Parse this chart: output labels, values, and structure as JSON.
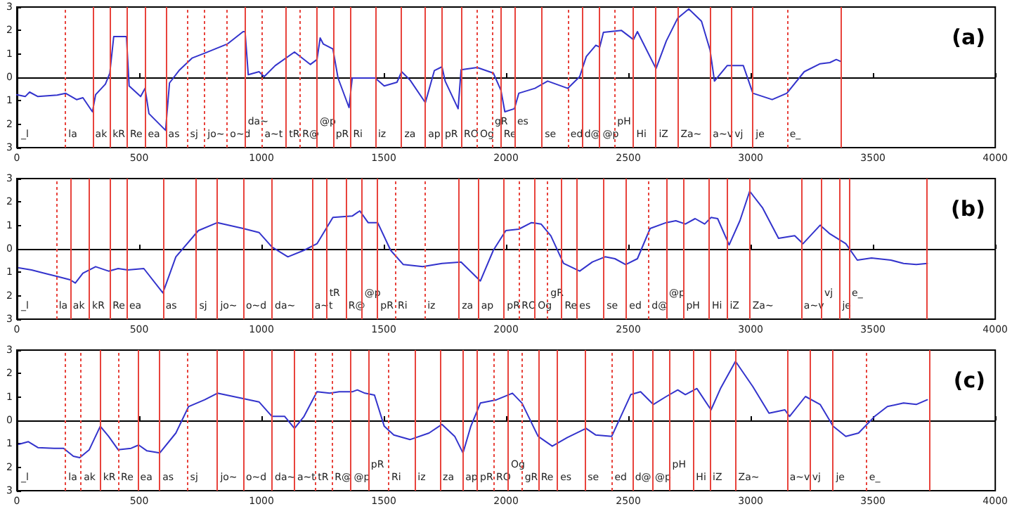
{
  "chart_data": [
    {
      "type": "line",
      "title": "(a)",
      "xlim": [
        0,
        4000
      ],
      "xticks": [
        0,
        500,
        1000,
        1500,
        2000,
        2500,
        3000,
        3500,
        4000
      ],
      "ylim": [
        -3,
        3
      ],
      "yticks": [
        {
          "value": -3,
          "label": "3"
        },
        {
          "value": -2,
          "label": "2"
        },
        {
          "value": -1,
          "label": "1"
        },
        {
          "value": 0,
          "label": "0"
        },
        {
          "value": 1,
          "label": "1"
        },
        {
          "value": 2,
          "label": "2"
        },
        {
          "value": 3,
          "label": "3"
        }
      ],
      "grid": false,
      "marker": "none",
      "line_style": "solid",
      "series": [
        {
          "color": "#3333cc",
          "x": [
            0,
            34,
            52,
            86,
            165,
            199,
            244,
            270,
            309,
            322,
            362,
            380,
            396,
            448,
            459,
            506,
            524,
            540,
            608,
            624,
            663,
            716,
            768,
            860,
            925,
            933,
            946,
            990,
            1011,
            1056,
            1135,
            1200,
            1227,
            1240,
            1253,
            1292,
            1313,
            1358,
            1371,
            1423,
            1465,
            1502,
            1554,
            1573,
            1607,
            1670,
            1707,
            1738,
            1751,
            1804,
            1816,
            1882,
            1948,
            1979,
            1995,
            2034,
            2052,
            2118,
            2170,
            2252,
            2301,
            2328,
            2367,
            2383,
            2398,
            2472,
            2521,
            2537,
            2613,
            2655,
            2702,
            2747,
            2799,
            2834,
            2852,
            2904,
            2970,
            3009,
            3088,
            3148,
            3219,
            3284,
            3324,
            3350,
            3368
          ],
          "values": [
            -0.74,
            -0.82,
            -0.63,
            -0.82,
            -0.76,
            -0.68,
            -0.95,
            -0.87,
            -1.47,
            -0.74,
            -0.29,
            0.18,
            1.74,
            1.74,
            -0.37,
            -0.82,
            -0.47,
            -1.55,
            -2.26,
            -0.24,
            0.29,
            0.82,
            1.03,
            1.42,
            1.95,
            1.95,
            0.11,
            0.24,
            0.03,
            0.5,
            1.08,
            0.55,
            0.76,
            1.68,
            1.42,
            1.21,
            -0.03,
            -1.29,
            -0.03,
            -0.03,
            -0.03,
            -0.37,
            -0.21,
            0.24,
            -0.11,
            -1.08,
            0.29,
            0.45,
            -0.16,
            -1.34,
            0.32,
            0.42,
            0.18,
            -0.55,
            -1.47,
            -1.34,
            -0.68,
            -0.47,
            -0.16,
            -0.47,
            0.03,
            0.89,
            1.37,
            1.29,
            1.92,
            2.0,
            1.61,
            1.95,
            0.37,
            1.55,
            2.53,
            2.92,
            2.39,
            1.16,
            -0.16,
            0.5,
            0.5,
            -0.68,
            -0.95,
            -0.68,
            0.24,
            0.58,
            0.63,
            0.76,
            0.68
          ]
        }
      ],
      "annotations": [
        "_l"
      ],
      "ref_lines": [
        {
          "axis": "x",
          "value": 199,
          "line_style": "dotted",
          "color": "#e8433c",
          "label": "la"
        },
        {
          "axis": "x",
          "value": 309,
          "line_style": "solid",
          "color": "#e8433c",
          "label": "ak"
        },
        {
          "axis": "x",
          "value": 380,
          "line_style": "solid",
          "color": "#e8433c",
          "label": "kR"
        },
        {
          "axis": "x",
          "value": 451,
          "line_style": "solid",
          "color": "#e8433c",
          "label": "Re"
        },
        {
          "axis": "x",
          "value": 524,
          "line_style": "solid",
          "color": "#e8433c",
          "label": "ea"
        },
        {
          "axis": "x",
          "value": 608,
          "line_style": "solid",
          "color": "#e8433c",
          "label": "as"
        },
        {
          "axis": "x",
          "value": 697,
          "line_style": "dotted",
          "color": "#e8433c",
          "label": "sj"
        },
        {
          "axis": "x",
          "value": 768,
          "line_style": "dotted",
          "color": "#e8433c",
          "label": "jo~"
        },
        {
          "axis": "x",
          "value": 860,
          "line_style": "dotted",
          "color": "#e8433c",
          "label": "o~d"
        },
        {
          "axis": "x",
          "value": 933,
          "line_style": "solid",
          "color": "#e8433c",
          "label": "da~"
        },
        {
          "axis": "x",
          "value": 1001,
          "line_style": "dotted",
          "color": "#e8433c",
          "label": "a~t"
        },
        {
          "axis": "x",
          "value": 1101,
          "line_style": "solid",
          "color": "#e8433c",
          "label": "tR"
        },
        {
          "axis": "x",
          "value": 1156,
          "line_style": "dotted",
          "color": "#e8433c",
          "label": "R@"
        },
        {
          "axis": "x",
          "value": 1227,
          "line_style": "solid",
          "color": "#e8433c",
          "label": "@p"
        },
        {
          "axis": "x",
          "value": 1292,
          "line_style": "solid",
          "color": "#e8433c",
          "label": "pR"
        },
        {
          "axis": "x",
          "value": 1363,
          "line_style": "solid",
          "color": "#e8433c",
          "label": "Ri"
        },
        {
          "axis": "x",
          "value": 1465,
          "line_style": "solid",
          "color": "#e8433c",
          "label": "iz"
        },
        {
          "axis": "x",
          "value": 1573,
          "line_style": "solid",
          "color": "#e8433c",
          "label": "za"
        },
        {
          "axis": "x",
          "value": 1670,
          "line_style": "solid",
          "color": "#e8433c",
          "label": "ap"
        },
        {
          "axis": "x",
          "value": 1738,
          "line_style": "solid",
          "color": "#e8433c",
          "label": "pR"
        },
        {
          "axis": "x",
          "value": 1816,
          "line_style": "solid",
          "color": "#e8433c",
          "label": "RO"
        },
        {
          "axis": "x",
          "value": 1882,
          "line_style": "dotted",
          "color": "#e8433c",
          "label": "Og"
        },
        {
          "axis": "x",
          "value": 1942,
          "line_style": "dotted",
          "color": "#e8433c",
          "label": "gR"
        },
        {
          "axis": "x",
          "value": 1979,
          "line_style": "solid",
          "color": "#e8433c",
          "label": "Re"
        },
        {
          "axis": "x",
          "value": 2034,
          "line_style": "solid",
          "color": "#e8433c",
          "label": "es"
        },
        {
          "axis": "x",
          "value": 2147,
          "line_style": "solid",
          "color": "#e8433c",
          "label": "se"
        },
        {
          "axis": "x",
          "value": 2252,
          "line_style": "dotted",
          "color": "#e8433c",
          "label": "ed"
        },
        {
          "axis": "x",
          "value": 2309,
          "line_style": "solid",
          "color": "#e8433c",
          "label": "d@"
        },
        {
          "axis": "x",
          "value": 2383,
          "line_style": "solid",
          "color": "#e8433c",
          "label": "@p"
        },
        {
          "axis": "x",
          "value": 2443,
          "line_style": "dotted",
          "color": "#e8433c",
          "label": "pH"
        },
        {
          "axis": "x",
          "value": 2521,
          "line_style": "solid",
          "color": "#e8433c",
          "label": "Hi"
        },
        {
          "axis": "x",
          "value": 2613,
          "line_style": "solid",
          "color": "#e8433c",
          "label": "iZ"
        },
        {
          "axis": "x",
          "value": 2702,
          "line_style": "solid",
          "color": "#e8433c",
          "label": "Za~"
        },
        {
          "axis": "x",
          "value": 2834,
          "line_style": "solid",
          "color": "#e8433c",
          "label": "a~v"
        },
        {
          "axis": "x",
          "value": 2923,
          "line_style": "solid",
          "color": "#e8433c",
          "label": "vj"
        },
        {
          "axis": "x",
          "value": 3009,
          "line_style": "solid",
          "color": "#e8433c",
          "label": "je"
        },
        {
          "axis": "x",
          "value": 3148,
          "line_style": "dotted",
          "color": "#e8433c",
          "label": "e_"
        },
        {
          "axis": "x",
          "value": 3368,
          "line_style": "solid",
          "color": "#e8433c"
        }
      ]
    },
    {
      "type": "line",
      "title": "(b)",
      "xlim": [
        0,
        4000
      ],
      "xticks": [
        0,
        500,
        1000,
        1500,
        2000,
        2500,
        3000,
        3500,
        4000
      ],
      "ylim": [
        -3,
        3
      ],
      "yticks": [
        {
          "value": -3,
          "label": "3"
        },
        {
          "value": -2,
          "label": "2"
        },
        {
          "value": -1,
          "label": "1"
        },
        {
          "value": 0,
          "label": "0"
        },
        {
          "value": 1,
          "label": "1"
        },
        {
          "value": 2,
          "label": "2"
        },
        {
          "value": 3,
          "label": "3"
        }
      ],
      "grid": false,
      "marker": "none",
      "line_style": "solid",
      "series": [
        {
          "color": "#3333cc",
          "x": [
            8,
            60,
            113,
            165,
            218,
            239,
            270,
            322,
            375,
            414,
            453,
            519,
            597,
            650,
            742,
            820,
            925,
            990,
            1043,
            1108,
            1174,
            1227,
            1292,
            1371,
            1402,
            1436,
            1475,
            1528,
            1580,
            1659,
            1738,
            1816,
            1895,
            1948,
            1999,
            2052,
            2104,
            2143,
            2183,
            2235,
            2301,
            2353,
            2405,
            2445,
            2489,
            2537,
            2589,
            2655,
            2694,
            2733,
            2773,
            2812,
            2838,
            2865,
            2912,
            2956,
            2996,
            3048,
            3114,
            3180,
            3214,
            3284,
            3324,
            3389,
            3436,
            3494,
            3573,
            3625,
            3677,
            3722
          ],
          "values": [
            -0.81,
            -0.9,
            -1.04,
            -1.18,
            -1.32,
            -1.46,
            -1.04,
            -0.76,
            -0.95,
            -0.84,
            -0.9,
            -0.84,
            -1.88,
            -0.34,
            0.78,
            1.12,
            0.87,
            0.7,
            0.08,
            -0.34,
            -0.06,
            0.22,
            1.34,
            1.4,
            1.62,
            1.12,
            1.12,
            -0.06,
            -0.67,
            -0.76,
            -0.62,
            -0.56,
            -1.37,
            -0.06,
            0.78,
            0.84,
            1.12,
            1.06,
            0.56,
            -0.62,
            -0.95,
            -0.56,
            -0.34,
            -0.42,
            -0.67,
            -0.42,
            0.87,
            1.12,
            1.2,
            1.06,
            1.29,
            1.06,
            1.34,
            1.29,
            0.17,
            1.2,
            2.46,
            1.76,
            0.45,
            0.56,
            0.22,
            1.01,
            0.64,
            0.22,
            -0.48,
            -0.39,
            -0.48,
            -0.62,
            -0.67,
            -0.62
          ]
        }
      ],
      "annotations": [
        "_l"
      ],
      "ref_lines": [
        {
          "axis": "x",
          "value": 160,
          "line_style": "dotted",
          "color": "#e8433c",
          "label": "la"
        },
        {
          "axis": "x",
          "value": 218,
          "line_style": "solid",
          "color": "#e8433c",
          "label": "ak"
        },
        {
          "axis": "x",
          "value": 296,
          "line_style": "solid",
          "color": "#e8433c",
          "label": "kR"
        },
        {
          "axis": "x",
          "value": 380,
          "line_style": "solid",
          "color": "#e8433c",
          "label": "Re"
        },
        {
          "axis": "x",
          "value": 448,
          "line_style": "solid",
          "color": "#e8433c",
          "label": "ea"
        },
        {
          "axis": "x",
          "value": 597,
          "line_style": "solid",
          "color": "#e8433c",
          "label": "as"
        },
        {
          "axis": "x",
          "value": 734,
          "line_style": "solid",
          "color": "#e8433c",
          "label": "sj"
        },
        {
          "axis": "x",
          "value": 820,
          "line_style": "solid",
          "color": "#e8433c",
          "label": "jo~"
        },
        {
          "axis": "x",
          "value": 925,
          "line_style": "solid",
          "color": "#e8433c",
          "label": "o~d"
        },
        {
          "axis": "x",
          "value": 1043,
          "line_style": "solid",
          "color": "#e8433c",
          "label": "da~"
        },
        {
          "axis": "x",
          "value": 1206,
          "line_style": "solid",
          "color": "#e8433c",
          "label": "a~t"
        },
        {
          "axis": "x",
          "value": 1266,
          "line_style": "solid",
          "color": "#e8433c",
          "label": "tR"
        },
        {
          "axis": "x",
          "value": 1344,
          "line_style": "solid",
          "color": "#e8433c",
          "label": "R@"
        },
        {
          "axis": "x",
          "value": 1410,
          "line_style": "solid",
          "color": "#e8433c",
          "label": "@p"
        },
        {
          "axis": "x",
          "value": 1475,
          "line_style": "solid",
          "color": "#e8433c",
          "label": "pR"
        },
        {
          "axis": "x",
          "value": 1546,
          "line_style": "dotted",
          "color": "#e8433c",
          "label": "Ri"
        },
        {
          "axis": "x",
          "value": 1667,
          "line_style": "dotted",
          "color": "#e8433c",
          "label": "iz"
        },
        {
          "axis": "x",
          "value": 1808,
          "line_style": "solid",
          "color": "#e8433c",
          "label": "za"
        },
        {
          "axis": "x",
          "value": 1887,
          "line_style": "solid",
          "color": "#e8433c",
          "label": "ap"
        },
        {
          "axis": "x",
          "value": 1992,
          "line_style": "solid",
          "color": "#e8433c",
          "label": "pR"
        },
        {
          "axis": "x",
          "value": 2052,
          "line_style": "dotted",
          "color": "#e8433c",
          "label": "RO"
        },
        {
          "axis": "x",
          "value": 2118,
          "line_style": "solid",
          "color": "#e8433c",
          "label": "Og"
        },
        {
          "axis": "x",
          "value": 2170,
          "line_style": "dotted",
          "color": "#e8433c",
          "label": "gR"
        },
        {
          "axis": "x",
          "value": 2228,
          "line_style": "solid",
          "color": "#e8433c",
          "label": "Re"
        },
        {
          "axis": "x",
          "value": 2288,
          "line_style": "solid",
          "color": "#e8433c",
          "label": "es"
        },
        {
          "axis": "x",
          "value": 2400,
          "line_style": "solid",
          "color": "#e8433c",
          "label": "se"
        },
        {
          "axis": "x",
          "value": 2492,
          "line_style": "solid",
          "color": "#e8433c",
          "label": "ed"
        },
        {
          "axis": "x",
          "value": 2584,
          "line_style": "dotted",
          "color": "#e8433c",
          "label": "d@"
        },
        {
          "axis": "x",
          "value": 2655,
          "line_style": "solid",
          "color": "#e8433c",
          "label": "@p"
        },
        {
          "axis": "x",
          "value": 2725,
          "line_style": "solid",
          "color": "#e8433c",
          "label": "pH"
        },
        {
          "axis": "x",
          "value": 2830,
          "line_style": "solid",
          "color": "#e8433c",
          "label": "Hi"
        },
        {
          "axis": "x",
          "value": 2903,
          "line_style": "solid",
          "color": "#e8433c",
          "label": "iZ"
        },
        {
          "axis": "x",
          "value": 2996,
          "line_style": "solid",
          "color": "#e8433c",
          "label": "Za~"
        },
        {
          "axis": "x",
          "value": 3206,
          "line_style": "solid",
          "color": "#e8433c",
          "label": "a~v"
        },
        {
          "axis": "x",
          "value": 3290,
          "line_style": "solid",
          "color": "#e8433c",
          "label": "vj"
        },
        {
          "axis": "x",
          "value": 3363,
          "line_style": "solid",
          "color": "#e8433c",
          "label": "je"
        },
        {
          "axis": "x",
          "value": 3402,
          "line_style": "solid",
          "color": "#e8433c",
          "label": "e_"
        },
        {
          "axis": "x",
          "value": 3722,
          "line_style": "solid",
          "color": "#e8433c"
        }
      ]
    },
    {
      "type": "line",
      "title": "(c)",
      "xlim": [
        0,
        4000
      ],
      "xticks": [
        0,
        500,
        1000,
        1500,
        2000,
        2500,
        3000,
        3500,
        4000
      ],
      "ylim": [
        -3,
        3
      ],
      "yticks": [
        {
          "value": -3,
          "label": "3"
        },
        {
          "value": -2,
          "label": "2"
        },
        {
          "value": -1,
          "label": "1"
        },
        {
          "value": 0,
          "label": "0"
        },
        {
          "value": 1,
          "label": "1"
        },
        {
          "value": 2,
          "label": "2"
        },
        {
          "value": 3,
          "label": "3"
        }
      ],
      "grid": false,
      "marker": "none",
      "line_style": "solid",
      "series": [
        {
          "color": "#3333cc",
          "x": [
            8,
            47,
            86,
            152,
            191,
            231,
            257,
            296,
            341,
            375,
            414,
            467,
            498,
            532,
            584,
            650,
            702,
            768,
            820,
            912,
            990,
            1043,
            1095,
            1135,
            1174,
            1227,
            1279,
            1318,
            1371,
            1392,
            1423,
            1462,
            1502,
            1541,
            1607,
            1685,
            1738,
            1790,
            1824,
            1856,
            1895,
            1961,
            2026,
            2065,
            2131,
            2189,
            2249,
            2327,
            2366,
            2432,
            2510,
            2550,
            2602,
            2655,
            2702,
            2733,
            2780,
            2838,
            2878,
            2938,
            3009,
            3075,
            3140,
            3159,
            3224,
            3284,
            3337,
            3389,
            3441,
            3507,
            3559,
            3625,
            3677,
            3722
          ],
          "values": [
            -1.02,
            -0.91,
            -1.16,
            -1.19,
            -1.19,
            -1.53,
            -1.59,
            -1.25,
            -0.25,
            -0.68,
            -1.25,
            -1.19,
            -1.05,
            -1.3,
            -1.39,
            -0.54,
            0.59,
            0.88,
            1.16,
            0.96,
            0.79,
            0.17,
            0.17,
            -0.34,
            0.17,
            1.22,
            1.16,
            1.22,
            1.22,
            1.3,
            1.16,
            1.08,
            -0.25,
            -0.62,
            -0.82,
            -0.54,
            -0.17,
            -0.68,
            -1.39,
            -0.25,
            0.74,
            0.88,
            1.16,
            0.74,
            -0.68,
            -1.1,
            -0.74,
            -0.34,
            -0.62,
            -0.68,
            1.1,
            1.22,
            0.68,
            1.02,
            1.3,
            1.1,
            1.36,
            0.45,
            1.39,
            2.52,
            1.44,
            0.31,
            0.45,
            0.17,
            1.02,
            0.68,
            -0.25,
            -0.68,
            -0.54,
            0.17,
            0.59,
            0.74,
            0.68,
            0.88
          ]
        }
      ],
      "annotations": [
        "_l"
      ],
      "ref_lines": [
        {
          "axis": "x",
          "value": 199,
          "line_style": "dotted",
          "color": "#e8433c",
          "label": "la"
        },
        {
          "axis": "x",
          "value": 262,
          "line_style": "dotted",
          "color": "#e8433c",
          "label": "ak"
        },
        {
          "axis": "x",
          "value": 341,
          "line_style": "solid",
          "color": "#e8433c",
          "label": "kR"
        },
        {
          "axis": "x",
          "value": 414,
          "line_style": "dotted",
          "color": "#e8433c",
          "label": "Re"
        },
        {
          "axis": "x",
          "value": 493,
          "line_style": "solid",
          "color": "#e8433c",
          "label": "ea"
        },
        {
          "axis": "x",
          "value": 584,
          "line_style": "solid",
          "color": "#e8433c",
          "label": "as"
        },
        {
          "axis": "x",
          "value": 697,
          "line_style": "dotted",
          "color": "#e8433c",
          "label": "sj"
        },
        {
          "axis": "x",
          "value": 820,
          "line_style": "solid",
          "color": "#e8433c",
          "label": "jo~"
        },
        {
          "axis": "x",
          "value": 925,
          "line_style": "solid",
          "color": "#e8433c",
          "label": "o~d"
        },
        {
          "axis": "x",
          "value": 1043,
          "line_style": "solid",
          "color": "#e8433c",
          "label": "da~"
        },
        {
          "axis": "x",
          "value": 1135,
          "line_style": "solid",
          "color": "#e8433c",
          "label": "a~t"
        },
        {
          "axis": "x",
          "value": 1219,
          "line_style": "dotted",
          "color": "#e8433c",
          "label": "tR"
        },
        {
          "axis": "x",
          "value": 1288,
          "line_style": "dotted",
          "color": "#e8433c",
          "label": "R@"
        },
        {
          "axis": "x",
          "value": 1366,
          "line_style": "solid",
          "color": "#e8433c",
          "label": "@p"
        },
        {
          "axis": "x",
          "value": 1436,
          "line_style": "solid",
          "color": "#e8433c",
          "label": "pR"
        },
        {
          "axis": "x",
          "value": 1520,
          "line_style": "dotted",
          "color": "#e8433c",
          "label": "Ri"
        },
        {
          "axis": "x",
          "value": 1627,
          "line_style": "solid",
          "color": "#e8433c",
          "label": "iz"
        },
        {
          "axis": "x",
          "value": 1730,
          "line_style": "solid",
          "color": "#e8433c",
          "label": "za"
        },
        {
          "axis": "x",
          "value": 1822,
          "line_style": "solid",
          "color": "#e8433c",
          "label": "ap"
        },
        {
          "axis": "x",
          "value": 1882,
          "line_style": "solid",
          "color": "#e8433c",
          "label": "pR"
        },
        {
          "axis": "x",
          "value": 1948,
          "line_style": "dotted",
          "color": "#e8433c",
          "label": "RO"
        },
        {
          "axis": "x",
          "value": 2008,
          "line_style": "solid",
          "color": "#e8433c",
          "label": "Og"
        },
        {
          "axis": "x",
          "value": 2065,
          "line_style": "dotted",
          "color": "#e8433c",
          "label": "gR"
        },
        {
          "axis": "x",
          "value": 2131,
          "line_style": "solid",
          "color": "#e8433c",
          "label": "Re"
        },
        {
          "axis": "x",
          "value": 2210,
          "line_style": "solid",
          "color": "#e8433c",
          "label": "es"
        },
        {
          "axis": "x",
          "value": 2322,
          "line_style": "solid",
          "color": "#e8433c",
          "label": "se"
        },
        {
          "axis": "x",
          "value": 2432,
          "line_style": "dotted",
          "color": "#e8433c",
          "label": "ed"
        },
        {
          "axis": "x",
          "value": 2516,
          "line_style": "solid",
          "color": "#e8433c",
          "label": "d@"
        },
        {
          "axis": "x",
          "value": 2597,
          "line_style": "solid",
          "color": "#e8433c",
          "label": "@p"
        },
        {
          "axis": "x",
          "value": 2668,
          "line_style": "solid",
          "color": "#e8433c",
          "label": "pH"
        },
        {
          "axis": "x",
          "value": 2765,
          "line_style": "solid",
          "color": "#e8433c",
          "label": "Hi"
        },
        {
          "axis": "x",
          "value": 2833,
          "line_style": "solid",
          "color": "#e8433c",
          "label": "iZ"
        },
        {
          "axis": "x",
          "value": 2938,
          "line_style": "solid",
          "color": "#e8433c",
          "label": "Za~"
        },
        {
          "axis": "x",
          "value": 3148,
          "line_style": "solid",
          "color": "#e8433c",
          "label": "a~v"
        },
        {
          "axis": "x",
          "value": 3240,
          "line_style": "solid",
          "color": "#e8433c",
          "label": "vj"
        },
        {
          "axis": "x",
          "value": 3337,
          "line_style": "solid",
          "color": "#e8433c",
          "label": "je"
        },
        {
          "axis": "x",
          "value": 3473,
          "line_style": "dotted",
          "color": "#e8433c",
          "label": "e_"
        },
        {
          "axis": "x",
          "value": 3730,
          "line_style": "solid",
          "color": "#e8433c"
        }
      ]
    }
  ]
}
